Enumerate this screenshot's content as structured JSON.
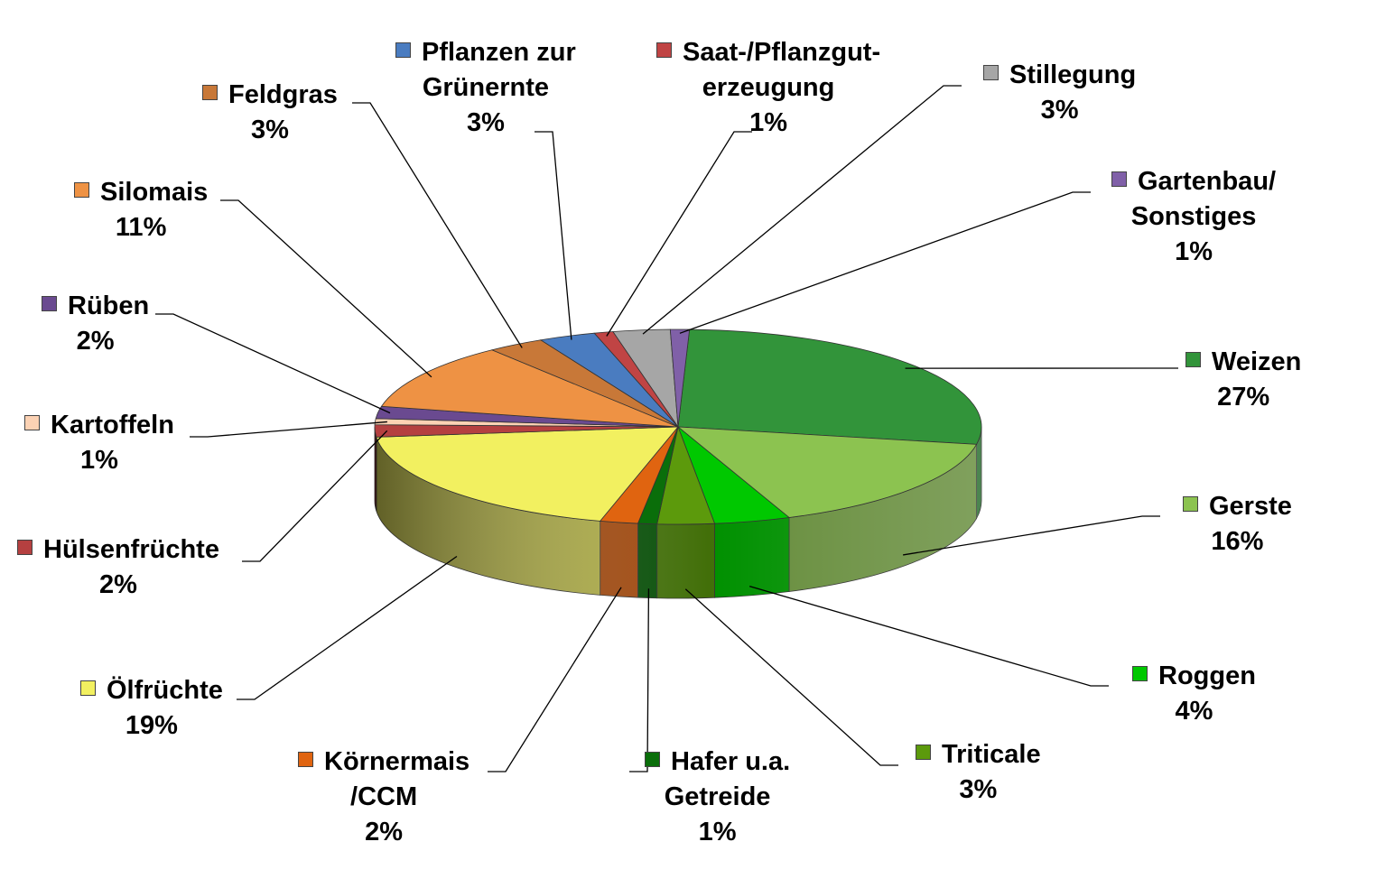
{
  "chart_data": {
    "type": "pie",
    "three_d": true,
    "legend": "none",
    "title": "",
    "slices": [
      {
        "label": "Weizen",
        "label_lines": [
          "Weizen"
        ],
        "value": 27,
        "display": "27%",
        "color": "#32943a"
      },
      {
        "label": "Gerste",
        "label_lines": [
          "Gerste"
        ],
        "value": 16,
        "display": "16%",
        "color": "#8cc350"
      },
      {
        "label": "Roggen",
        "label_lines": [
          "Roggen"
        ],
        "value": 4,
        "display": "4%",
        "color": "#00c800"
      },
      {
        "label": "Triticale",
        "label_lines": [
          "Triticale"
        ],
        "value": 3,
        "display": "3%",
        "color": "#5c9a0c"
      },
      {
        "label": "Hafer u.a. Getreide",
        "label_lines": [
          "Hafer u.a.",
          "Getreide"
        ],
        "value": 1,
        "display": "1%",
        "color": "#0a6e0a"
      },
      {
        "label": "Körnermais /CCM",
        "label_lines": [
          "Körnermais",
          "/CCM"
        ],
        "value": 2,
        "display": "2%",
        "color": "#e06410"
      },
      {
        "label": "Ölfrüchte",
        "label_lines": [
          "Ölfrüchte"
        ],
        "value": 19,
        "display": "19%",
        "color": "#f2f060"
      },
      {
        "label": "Hülsenfrüchte",
        "label_lines": [
          "Hülsenfrüchte"
        ],
        "value": 2,
        "display": "2%",
        "color": "#b54040"
      },
      {
        "label": "Kartoffeln",
        "label_lines": [
          "Kartoffeln"
        ],
        "value": 1,
        "display": "1%",
        "color": "#fcd2b4"
      },
      {
        "label": "Rüben",
        "label_lines": [
          "Rüben"
        ],
        "value": 2,
        "display": "2%",
        "color": "#6a4a90"
      },
      {
        "label": "Silomais",
        "label_lines": [
          "Silomais"
        ],
        "value": 11,
        "display": "11%",
        "color": "#ee9244"
      },
      {
        "label": "Feldgras",
        "label_lines": [
          "Feldgras"
        ],
        "value": 3,
        "display": "3%",
        "color": "#c87838"
      },
      {
        "label": "Pflanzen zur Grünernte",
        "label_lines": [
          "Pflanzen zur",
          "Grünernte"
        ],
        "value": 3,
        "display": "3%",
        "color": "#4a7cc0"
      },
      {
        "label": "Saat-/Pflanzgut-erzeugung",
        "label_lines": [
          "Saat-/Pflanzgut-",
          "erzeugung"
        ],
        "value": 1,
        "display": "1%",
        "color": "#c04444"
      },
      {
        "label": "Stillegung",
        "label_lines": [
          "Stillegung"
        ],
        "value": 3,
        "display": "3%",
        "color": "#a6a6a6"
      },
      {
        "label": "Gartenbau/ Sonstiges",
        "label_lines": [
          "Gartenbau/",
          "Sonstiges"
        ],
        "value": 1,
        "display": "1%",
        "color": "#8060a8"
      }
    ]
  }
}
